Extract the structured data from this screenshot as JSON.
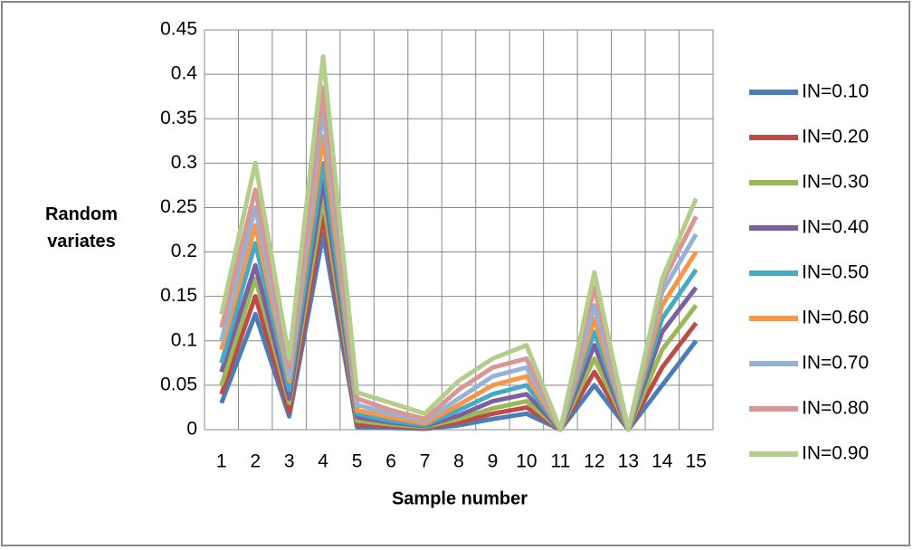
{
  "chart_data": {
    "type": "line",
    "xlabel": "Sample number",
    "ylabel": "Random variates",
    "categories": [
      "1",
      "2",
      "3",
      "4",
      "5",
      "6",
      "7",
      "8",
      "9",
      "10",
      "11",
      "12",
      "13",
      "14",
      "15"
    ],
    "ylim": [
      0,
      0.45
    ],
    "yticks": [
      0,
      0.05,
      0.1,
      0.15,
      0.2,
      0.25,
      0.3,
      0.35,
      0.4,
      0.45
    ],
    "grid": true,
    "legend": "right",
    "series": [
      {
        "name": "IN=0.10",
        "color": "#4a7ebb",
        "values": [
          0.03,
          0.13,
          0.015,
          0.22,
          0.003,
          0.002,
          0.001,
          0.005,
          0.012,
          0.018,
          0,
          0.05,
          0,
          0.05,
          0.1
        ]
      },
      {
        "name": "IN=0.20",
        "color": "#be4b48",
        "values": [
          0.04,
          0.15,
          0.02,
          0.24,
          0.006,
          0.004,
          0.002,
          0.008,
          0.018,
          0.025,
          0,
          0.065,
          0,
          0.07,
          0.12
        ]
      },
      {
        "name": "IN=0.30",
        "color": "#98b954",
        "values": [
          0.05,
          0.17,
          0.03,
          0.26,
          0.01,
          0.006,
          0.003,
          0.012,
          0.024,
          0.032,
          0,
          0.08,
          0,
          0.09,
          0.14
        ]
      },
      {
        "name": "IN=0.40",
        "color": "#7d60a0",
        "values": [
          0.065,
          0.185,
          0.035,
          0.28,
          0.014,
          0.008,
          0.004,
          0.016,
          0.032,
          0.04,
          0,
          0.095,
          0,
          0.11,
          0.16
        ]
      },
      {
        "name": "IN=0.50",
        "color": "#46aac5",
        "values": [
          0.075,
          0.21,
          0.045,
          0.3,
          0.018,
          0.01,
          0.005,
          0.022,
          0.04,
          0.05,
          0,
          0.11,
          0,
          0.125,
          0.18
        ]
      },
      {
        "name": "IN=0.60",
        "color": "#f79646",
        "values": [
          0.09,
          0.23,
          0.055,
          0.33,
          0.022,
          0.014,
          0.007,
          0.028,
          0.05,
          0.06,
          0,
          0.125,
          0,
          0.14,
          0.2
        ]
      },
      {
        "name": "IN=0.70",
        "color": "#95b3d7",
        "values": [
          0.1,
          0.25,
          0.06,
          0.36,
          0.028,
          0.018,
          0.01,
          0.035,
          0.06,
          0.07,
          0,
          0.14,
          0,
          0.155,
          0.22
        ]
      },
      {
        "name": "IN=0.80",
        "color": "#d99694",
        "values": [
          0.115,
          0.27,
          0.07,
          0.385,
          0.035,
          0.022,
          0.012,
          0.045,
          0.07,
          0.08,
          0,
          0.16,
          0,
          0.165,
          0.24
        ]
      },
      {
        "name": "IN=0.90",
        "color": "#b3cd8a",
        "values": [
          0.13,
          0.3,
          0.08,
          0.42,
          0.042,
          0.03,
          0.018,
          0.055,
          0.08,
          0.095,
          0,
          0.177,
          0,
          0.17,
          0.26
        ]
      }
    ]
  }
}
